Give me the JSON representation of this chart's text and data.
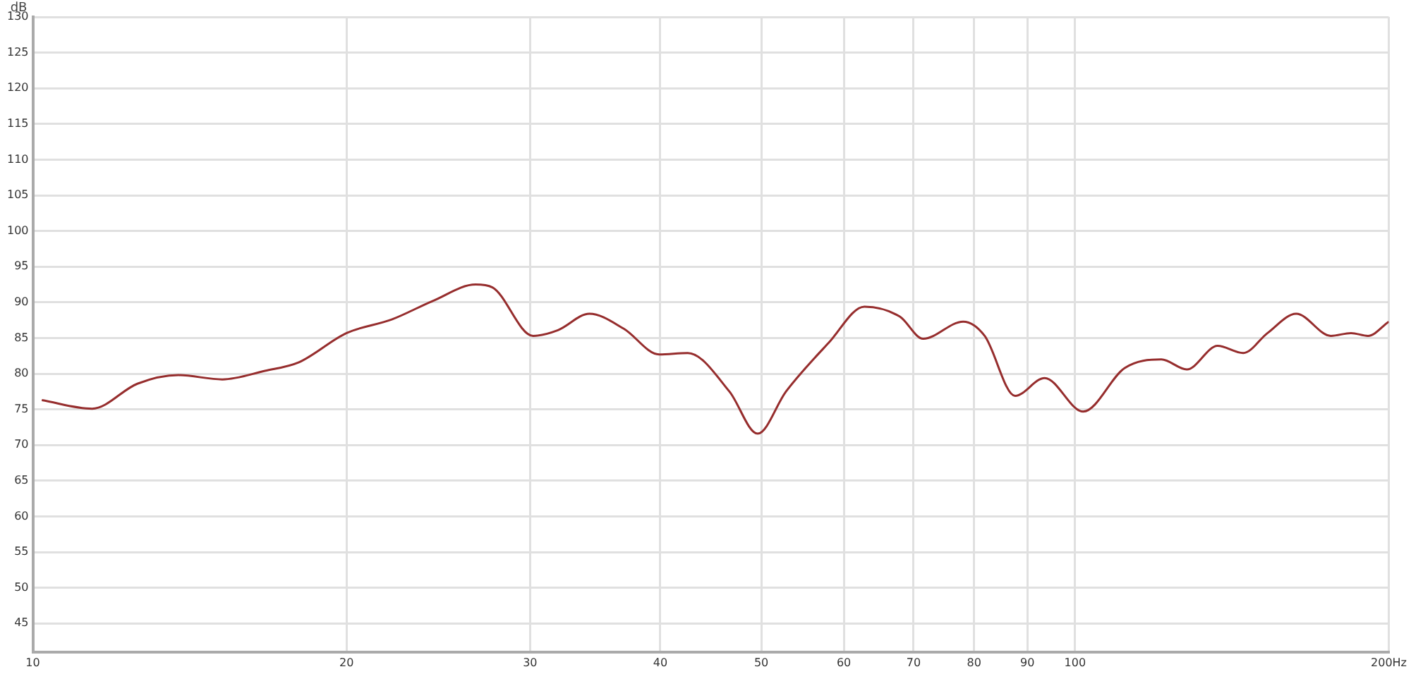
{
  "chart_data": {
    "type": "line",
    "ylabel": "dB",
    "log": "x",
    "grid": true,
    "marker": "none",
    "line_style": "solid",
    "legend": false,
    "xlim": [
      10,
      200
    ],
    "xticks": [
      10,
      20,
      30,
      40,
      50,
      60,
      70,
      80,
      90,
      100,
      {
        "value": 200,
        "label": "200Hz"
      }
    ],
    "ylim": [
      41,
      130
    ],
    "yticks": [
      45,
      50,
      55,
      60,
      65,
      70,
      75,
      80,
      85,
      90,
      95,
      100,
      105,
      110,
      115,
      120,
      125,
      130
    ],
    "series": [
      {
        "color": "#962d2d",
        "x": [
          10.2,
          11.4,
          12.6,
          13.8,
          15.2,
          16.7,
          18,
          20,
          22.1,
          24.2,
          26.6,
          27.6,
          30.2,
          31.9,
          34.2,
          36.9,
          39.9,
          42.5,
          46.6,
          49.6,
          52.8,
          58,
          62.8,
          67.9,
          71.5,
          78.1,
          81.9,
          87.6,
          93.5,
          101.8,
          111.6,
          121,
          128,
          137,
          145,
          153,
          163,
          176,
          184,
          191,
          200
        ],
        "values": [
          76.3,
          75.1,
          78.6,
          79.8,
          79.2,
          80.4,
          81.6,
          85.7,
          87.6,
          90.2,
          92.5,
          92.1,
          85.3,
          86.1,
          88.4,
          86.3,
          82.7,
          82.9,
          77.5,
          71.6,
          77.5,
          84.3,
          89.4,
          88,
          84.9,
          87.3,
          85.3,
          76.9,
          79.4,
          74.7,
          80.8,
          82,
          80.6,
          83.9,
          82.9,
          85.7,
          88.4,
          85.3,
          85.7,
          85.3,
          87.3
        ]
      }
    ]
  }
}
